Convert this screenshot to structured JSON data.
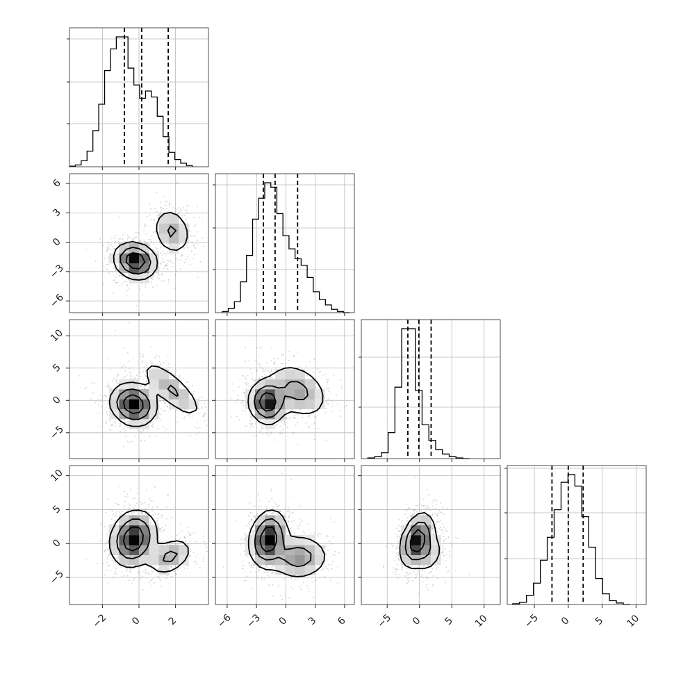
{
  "chart_data": {
    "type": "corner",
    "parameters": [
      {
        "ticks": [
          -2,
          0,
          2
        ],
        "tick_labels": [
          "−2",
          "0",
          "2"
        ],
        "range": [
          -3.8,
          3.8
        ],
        "quantiles": [
          -0.8,
          0.15,
          1.6
        ],
        "hist_edges_start": -3.8,
        "hist_bin_width": 0.32,
        "hist_counts": [
          0.5,
          1.5,
          5,
          13,
          30,
          52,
          80,
          98,
          108,
          108,
          82,
          68,
          57,
          63,
          58,
          42,
          25,
          12,
          6,
          3,
          1
        ]
      },
      {
        "ticks": [
          -6,
          -3,
          0,
          3,
          6
        ],
        "tick_labels": [
          "−6",
          "−3",
          "0",
          "3",
          "6"
        ],
        "range": [
          -7.2,
          7.0
        ],
        "quantiles": [
          -2.3,
          -1.1,
          1.2
        ],
        "hist_edges_start": -6.5,
        "hist_bin_width": 0.62,
        "hist_counts": [
          1,
          4,
          10,
          28,
          52,
          85,
          104,
          118,
          114,
          90,
          70,
          58,
          49,
          43,
          32,
          19,
          12,
          7,
          3,
          1,
          0
        ]
      },
      {
        "ticks": [
          -5,
          0,
          5,
          10
        ],
        "tick_labels": [
          "−5",
          "0",
          "5",
          "10"
        ],
        "range": [
          -9.0,
          12.5
        ],
        "quantiles": [
          -1.8,
          -0.1,
          1.8
        ],
        "hist_edges_start": -8.0,
        "hist_bin_width": 1.05,
        "hist_counts": [
          1,
          3,
          9,
          40,
          110,
          200,
          200,
          105,
          52,
          28,
          14,
          7,
          3,
          1,
          0
        ]
      },
      {
        "ticks": [
          -5,
          0,
          5,
          10
        ],
        "tick_labels": [
          "−5",
          "0",
          "5",
          "10"
        ],
        "range": [
          -9.0,
          11.5
        ],
        "quantiles": [
          -2.4,
          0.0,
          2.2
        ],
        "hist_edges_start": -8.2,
        "hist_bin_width": 1.02,
        "hist_counts": [
          1,
          3,
          12,
          28,
          58,
          88,
          124,
          160,
          170,
          155,
          115,
          75,
          34,
          14,
          5,
          2,
          0
        ]
      }
    ],
    "hist_yticks": [
      [
        0.31,
        0.61,
        0.92
      ],
      [
        0.31,
        0.61,
        0.92
      ],
      [
        0.37,
        0.73
      ],
      [
        0.33,
        0.66,
        0.98
      ]
    ],
    "pair_panels": [
      {
        "row": 1,
        "col": 0,
        "modes": [
          {
            "mx": -0.2,
            "my": -1.9,
            "sx": 0.55,
            "sy": 0.9,
            "w": 1.0,
            "rot": 0.15
          },
          {
            "mx": 1.8,
            "my": 1.1,
            "sx": 0.5,
            "sy": 1.2,
            "w": 0.38,
            "rot": 0.1
          }
        ]
      },
      {
        "row": 2,
        "col": 0,
        "modes": [
          {
            "mx": -0.3,
            "my": -0.6,
            "sx": 0.6,
            "sy": 1.6,
            "w": 1.0,
            "rot": 0.05
          },
          {
            "mx": 1.8,
            "my": 1.7,
            "sx": 0.5,
            "sy": 2.4,
            "w": 0.38,
            "rot": 0.3
          }
        ]
      },
      {
        "row": 2,
        "col": 1,
        "modes": [
          {
            "mx": -1.9,
            "my": -0.3,
            "sx": 0.9,
            "sy": 1.6,
            "w": 1.0,
            "rot": 0.05
          },
          {
            "mx": 1.2,
            "my": 1.5,
            "sx": 1.4,
            "sy": 2.2,
            "w": 0.45,
            "rot": 0.4
          }
        ]
      },
      {
        "row": 3,
        "col": 0,
        "modes": [
          {
            "mx": -0.3,
            "my": 0.7,
            "sx": 0.6,
            "sy": 2.0,
            "w": 1.0,
            "rot": -0.05
          },
          {
            "mx": 1.7,
            "my": -1.9,
            "sx": 0.55,
            "sy": 1.4,
            "w": 0.42,
            "rot": -0.2
          }
        ]
      },
      {
        "row": 3,
        "col": 1,
        "modes": [
          {
            "mx": -1.8,
            "my": 0.7,
            "sx": 0.9,
            "sy": 2.0,
            "w": 1.0,
            "rot": -0.1
          },
          {
            "mx": 1.3,
            "my": -2.0,
            "sx": 1.5,
            "sy": 1.6,
            "w": 0.5,
            "rot": -0.2
          }
        ]
      },
      {
        "row": 3,
        "col": 2,
        "modes": [
          {
            "mx": -0.4,
            "my": 0.5,
            "sx": 1.1,
            "sy": 2.0,
            "w": 1.0,
            "rot": -0.35
          },
          {
            "mx": 1.3,
            "my": -1.3,
            "sx": 1.2,
            "sy": 1.6,
            "w": 0.3,
            "rot": -0.2
          }
        ]
      }
    ],
    "contour_levels": [
      0.68,
      0.35,
      0.11
    ],
    "grid": true,
    "title": "",
    "xlabel": "",
    "ylabel": ""
  }
}
